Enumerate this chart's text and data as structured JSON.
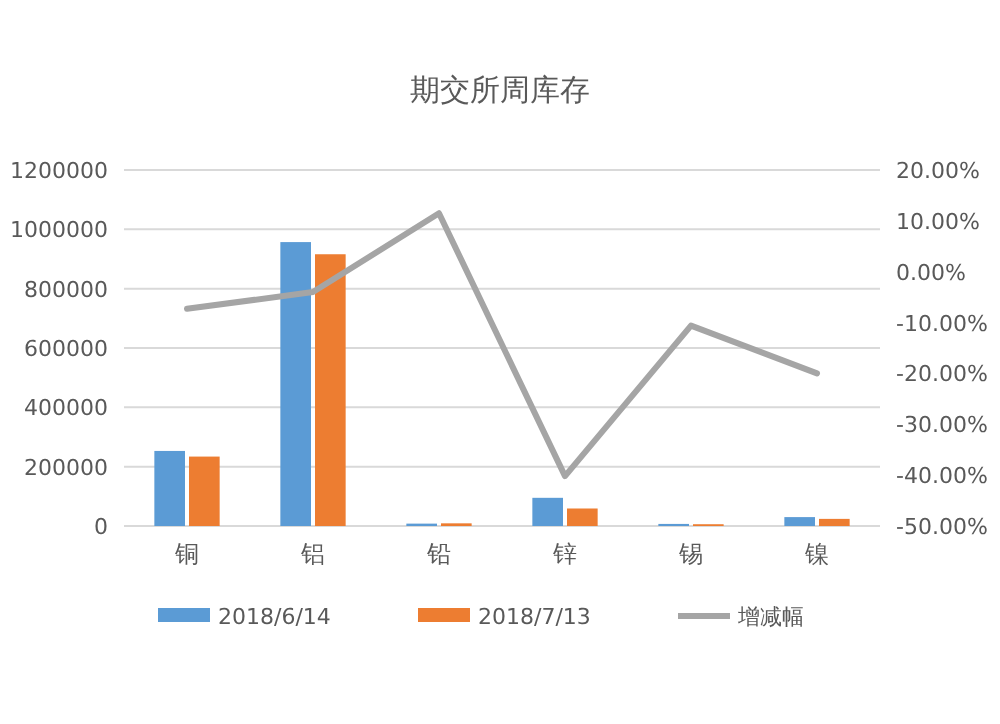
{
  "chart_data": {
    "type": "bar",
    "title": "期交所周库存",
    "categories": [
      "铜",
      "铝",
      "铅",
      "锌",
      "锡",
      "镍"
    ],
    "series": [
      {
        "name": "2018/6/14",
        "color": "#5b9bd5",
        "values": [
          253000,
          957000,
          8000,
          95000,
          7000,
          30000
        ]
      },
      {
        "name": "2018/7/13",
        "color": "#ed7d31",
        "values": [
          234000,
          916000,
          9000,
          59000,
          6000,
          24000
        ]
      },
      {
        "name": "增减幅",
        "color": "#a5a5a5",
        "type": "line",
        "axis": "y2",
        "values": [
          -7.3,
          -4.0,
          11.5,
          -40.2,
          -10.6,
          -20.0
        ]
      }
    ],
    "ylim": [
      0,
      1200000
    ],
    "yticks": [
      0,
      200000,
      400000,
      600000,
      800000,
      1000000,
      1200000
    ],
    "y2lim": [
      -50,
      20
    ],
    "y2ticks": [
      {
        "value": -50,
        "label": "-50.00%"
      },
      {
        "value": -40,
        "label": "-40.00%"
      },
      {
        "value": -30,
        "label": "-30.00%"
      },
      {
        "value": -20,
        "label": "-20.00%"
      },
      {
        "value": -10,
        "label": "-10.00%"
      },
      {
        "value": 0,
        "label": "0.00%"
      },
      {
        "value": 10,
        "label": "10.00%"
      },
      {
        "value": 20,
        "label": "20.00%"
      }
    ],
    "grid": "y",
    "legend": "bottom"
  }
}
